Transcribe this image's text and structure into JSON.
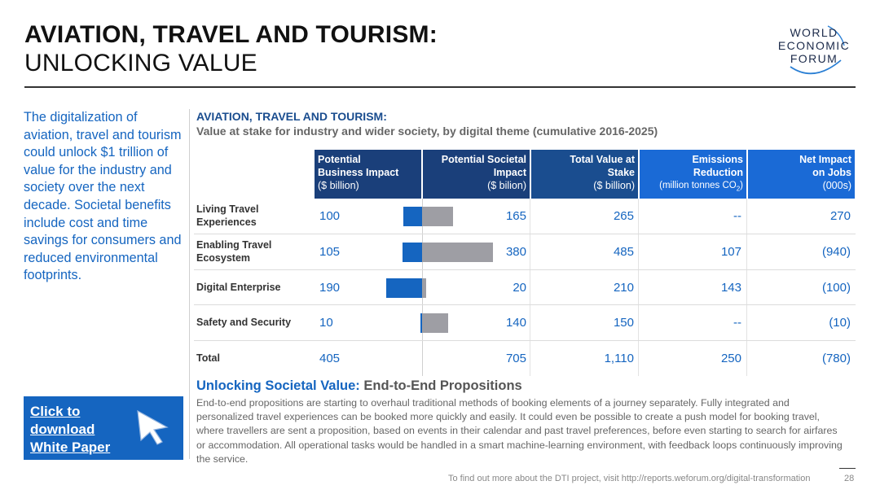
{
  "header": {
    "title_line1": "AVIATION, TRAVEL AND TOURISM:",
    "title_line2": "UNLOCKING VALUE"
  },
  "logo": {
    "lines": [
      "WORLD",
      "ECONOMIC",
      "FORUM"
    ]
  },
  "intro_text": "The digitalization of aviation, travel and tourism could unlock $1 trillion of value for the industry and society over the next decade. Societal benefits include cost and time savings for consumers and reduced environmental footprints.",
  "cta": {
    "label": "Click to download White Paper",
    "icon": "cursor-arrow-icon"
  },
  "table": {
    "title": "AVIATION, TRAVEL AND TOURISM:",
    "subtitle": "Value at stake for industry and wider society, by digital theme (cumulative 2016-2025)",
    "headers": [
      {
        "label": "Potential Business Impact",
        "unit": "($ billion)"
      },
      {
        "label": "Potential Societal Impact",
        "unit": "($ bilion)"
      },
      {
        "label": "Total Value at Stake",
        "unit": "($ billion)"
      },
      {
        "label": "Emissions Reduction",
        "unit": "(million tonnes CO2)"
      },
      {
        "label": "Net Impact on Jobs",
        "unit": "(000s)"
      }
    ],
    "rows": [
      {
        "label": "Living Travel Experiences",
        "business": "100",
        "societal": "165",
        "total": "265",
        "emissions": "--",
        "jobs": "270",
        "business_value": 100,
        "societal_value": 165
      },
      {
        "label": "Enabling Travel Ecosystem",
        "business": "105",
        "societal": "380",
        "total": "485",
        "emissions": "107",
        "jobs": "(940)",
        "business_value": 105,
        "societal_value": 380
      },
      {
        "label": "Digital Enterprise",
        "business": "190",
        "societal": "20",
        "total": "210",
        "emissions": "143",
        "jobs": "(100)",
        "business_value": 190,
        "societal_value": 20
      },
      {
        "label": "Safety and Security",
        "business": "10",
        "societal": "140",
        "total": "150",
        "emissions": "--",
        "jobs": "(10)",
        "business_value": 10,
        "societal_value": 140
      },
      {
        "label": "Total",
        "business": "405",
        "societal": "705",
        "total": "1,110",
        "emissions": "250",
        "jobs": "(780)"
      }
    ],
    "colors": {
      "business_bar": "#1565c0",
      "societal_bar": "#9e9ea4"
    }
  },
  "societal_value": {
    "title_a": "Unlocking Societal Value:",
    "title_b": "End-to-End Propositions",
    "body": "End-to-end propositions are starting to overhaul traditional methods of booking elements of a journey separately. Fully integrated and personalized travel experiences can be booked more quickly and easily. It could even be possible to create a push model for booking travel, where travellers are sent a proposition, based on events in their calendar and past travel preferences, before even starting to search for airfares or accommodation. All operational tasks would be handled in a smart machine-learning environment, with feedback loops continuously improving the service."
  },
  "footer": {
    "text": "To find out more about the DTI project, visit http://reports.weforum.org/digital-transformation",
    "page_number": "28"
  }
}
